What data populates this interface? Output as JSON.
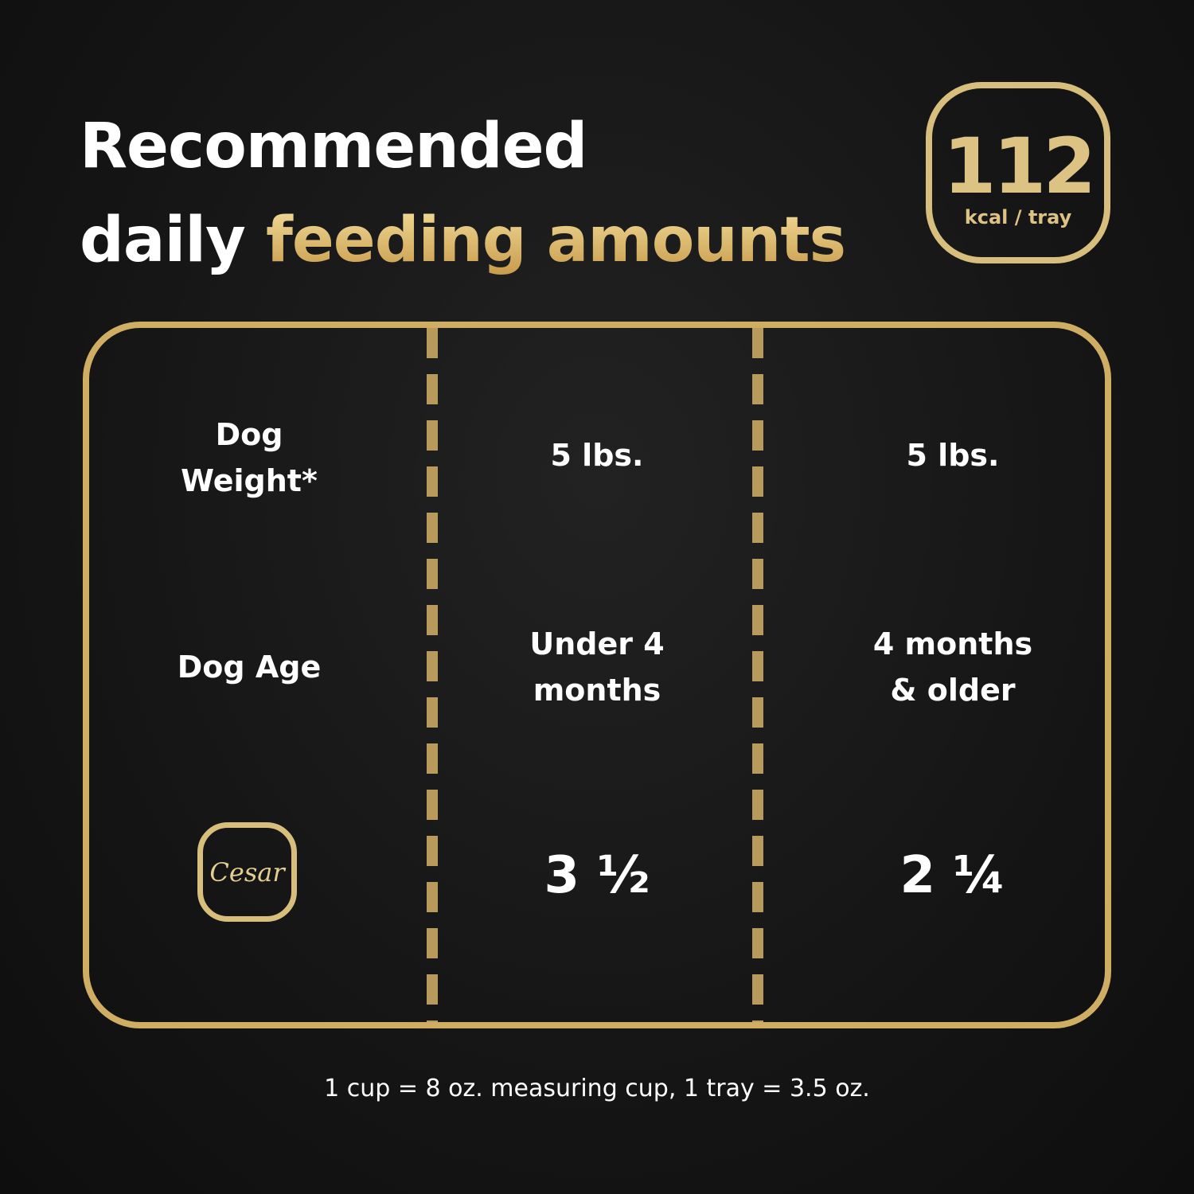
{
  "title": {
    "line1": "Recommended",
    "line2_plain": "daily",
    "line2_highlight": "feeding amounts"
  },
  "badge": {
    "value": "112",
    "unit": "kcal / tray"
  },
  "table": {
    "rows": [
      {
        "label": "Dog Weight*",
        "cells": [
          "5 lbs.",
          "5 lbs."
        ]
      },
      {
        "label": "Dog Age",
        "cells": [
          "Under 4 months",
          "4 months & older"
        ]
      },
      {
        "label_logo": "Cesar",
        "cells": [
          "3 ½",
          "2 ¼"
        ]
      }
    ]
  },
  "footnote": "1 cup = 8 oz. measuring cup, 1 tray = 3.5 oz.",
  "colors": {
    "gold": "#d8be7c",
    "background": "#151515"
  }
}
